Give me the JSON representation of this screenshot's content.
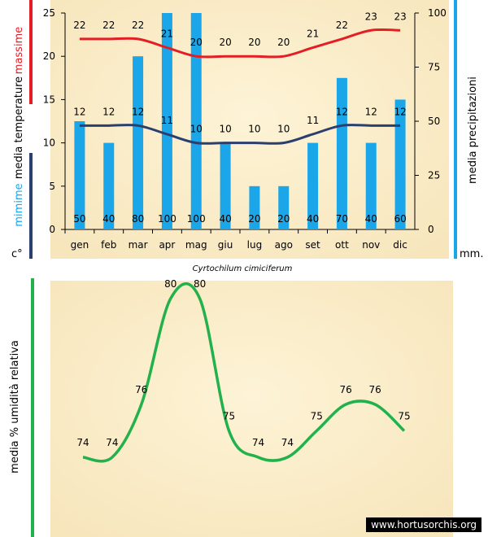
{
  "chart_data": [
    {
      "type": "bar+line",
      "title": "Cyrtochilum cimiciferum",
      "categories": [
        "gen",
        "feb",
        "mar",
        "apr",
        "mag",
        "giu",
        "lug",
        "ago",
        "set",
        "ott",
        "nov",
        "dic"
      ],
      "series": [
        {
          "name": "massime",
          "axis": "left",
          "type": "line",
          "color": "#e31e24",
          "values": [
            22,
            22,
            22,
            21,
            20,
            20,
            20,
            20,
            21,
            22,
            23,
            23
          ]
        },
        {
          "name": "mimime",
          "axis": "left",
          "type": "line",
          "color": "#2b3f6e",
          "values": [
            12,
            12,
            12,
            11,
            10,
            10,
            10,
            10,
            11,
            12,
            12,
            12
          ]
        },
        {
          "name": "media precipitazioni",
          "axis": "right",
          "type": "bar",
          "color": "#1aa6e8",
          "values": [
            50,
            40,
            80,
            100,
            100,
            40,
            20,
            20,
            40,
            70,
            40,
            60
          ]
        }
      ],
      "left_axis": {
        "ylim": [
          0,
          25
        ],
        "ticks": [
          0,
          5,
          10,
          15,
          20,
          25
        ],
        "label_parts": {
          "top": "massime",
          "middle": "media  temperature",
          "bottom": "mimime",
          "unit": "c°"
        }
      },
      "right_axis": {
        "ylim": [
          0,
          100
        ],
        "ticks": [
          0,
          25,
          50,
          75,
          100
        ],
        "label": "media  precipitazioni",
        "unit": "mm."
      }
    },
    {
      "type": "line",
      "ylabel": "media %  umidità relativa",
      "color": "#22b14c",
      "values": [
        74,
        74,
        76,
        80,
        80,
        75,
        74,
        74,
        75,
        76,
        76,
        75
      ]
    }
  ],
  "watermark": "www.hortusorchis.org"
}
